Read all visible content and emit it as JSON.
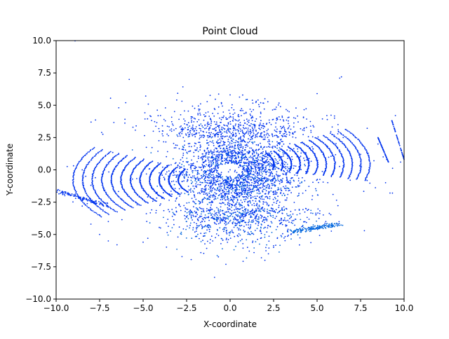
{
  "chart_data": {
    "type": "scatter",
    "title": "Point Cloud",
    "xlabel": "X-coordinate",
    "ylabel": "Y-coordinate",
    "xlim": [
      -10.0,
      10.0
    ],
    "ylim": [
      -10.0,
      10.0
    ],
    "xticks": [
      -10.0,
      -7.5,
      -5.0,
      -2.5,
      0.0,
      2.5,
      5.0,
      7.5,
      10.0
    ],
    "xtick_labels": [
      "−10.0",
      "−7.5",
      "−5.0",
      "−2.5",
      "0.0",
      "2.5",
      "5.0",
      "7.5",
      "10.0"
    ],
    "yticks": [
      -10.0,
      -7.5,
      -5.0,
      -2.5,
      0.0,
      2.5,
      5.0,
      7.5,
      10.0
    ],
    "ytick_labels": [
      "−10.0",
      "−7.5",
      "−5.0",
      "−2.5",
      "0.0",
      "2.5",
      "5.0",
      "7.5",
      "10.0"
    ],
    "grid": false,
    "legend": "none",
    "point_color": "#0033ee",
    "point_color_alt": "#0066dd",
    "series": [
      {
        "description_points": [
          [
            0.0,
            0.0
          ],
          [
            0.5,
            0.2
          ],
          [
            -0.5,
            -0.2
          ],
          [
            1.0,
            0.8
          ],
          [
            -1.0,
            -0.6
          ],
          [
            6.3,
            7.1
          ],
          [
            6.4,
            7.2
          ],
          [
            -5.8,
            7.0
          ],
          [
            -6.0,
            5.2
          ],
          [
            -6.4,
            4.8
          ],
          [
            -4.0,
            4.2
          ],
          [
            -3.8,
            3.9
          ],
          [
            -2.2,
            4.1
          ],
          [
            2.0,
            5.5
          ],
          [
            1.5,
            5.3
          ],
          [
            0.0,
            5.8
          ],
          [
            -0.5,
            5.2
          ],
          [
            5.0,
            5.9
          ],
          [
            9.5,
            4.2
          ],
          [
            9.3,
            3.8
          ],
          [
            8.5,
            2.0
          ],
          [
            8.8,
            1.0
          ],
          [
            9.0,
            0.8
          ],
          [
            9.8,
            0.6
          ],
          [
            7.5,
            1.2
          ],
          [
            6.5,
            2.5
          ],
          [
            6.2,
            3.5
          ],
          [
            6.0,
            4.0
          ],
          [
            -8.5,
            0.0
          ],
          [
            -8.3,
            -0.5
          ],
          [
            -8.0,
            -1.2
          ],
          [
            -9.8,
            -1.6
          ],
          [
            -9.5,
            -2.0
          ],
          [
            -8.5,
            -2.8
          ],
          [
            -7.5,
            -3.5
          ],
          [
            -7.0,
            -4.0
          ],
          [
            -7.5,
            -5.0
          ],
          [
            -7.0,
            -5.5
          ],
          [
            -6.5,
            -5.8
          ],
          [
            -8.0,
            -4.2
          ],
          [
            5.5,
            -4.0
          ],
          [
            6.2,
            -4.2
          ],
          [
            5.8,
            -4.3
          ],
          [
            4.5,
            -4.5
          ],
          [
            3.5,
            -5.0
          ],
          [
            2.5,
            -6.0
          ],
          [
            2.0,
            -7.0
          ],
          [
            1.8,
            -6.8
          ],
          [
            2.2,
            -6.5
          ],
          [
            1.0,
            -6.0
          ],
          [
            -1.0,
            -5.5
          ],
          [
            -3.0,
            -5.2
          ],
          [
            -5.0,
            -5.6
          ],
          [
            -4.0,
            -4.5
          ],
          [
            -2.5,
            -4.0
          ]
        ]
      }
    ]
  }
}
